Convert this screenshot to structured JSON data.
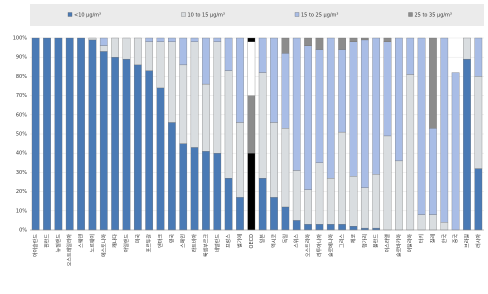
{
  "chart_data": {
    "type": "stacked_bar_100",
    "categories": [
      "아이슬란드",
      "핀란드",
      "뉴질랜드",
      "오스트레일리아",
      "스웨덴",
      "노르웨이",
      "에스토니아",
      "캐나다",
      "아일랜드",
      "미국",
      "포르투갈",
      "덴마크",
      "영국",
      "스페인",
      "라트비아",
      "룩셈부르크",
      "네덜란드",
      "프랑스",
      "벨기에",
      "OECD",
      "일본",
      "멕시코",
      "독일",
      "스위스",
      "오스트리아",
      "리투아니아",
      "슬로베니아",
      "그리스",
      "체코",
      "헝가리",
      "폴란드",
      "이스라엘",
      "슬로바키아",
      "이탈리아",
      "터키",
      "칠레",
      "한국",
      "중국",
      "브라질",
      "러시아"
    ],
    "series": [
      {
        "name": "<10 μg/m³",
        "color": "#4a7ab5",
        "values": [
          100,
          100,
          100,
          100,
          100,
          99,
          93,
          90,
          89,
          86,
          83,
          74,
          56,
          45,
          43,
          41,
          40,
          27,
          17,
          40,
          27,
          17,
          12,
          5,
          3,
          3,
          3,
          3,
          2,
          1,
          1,
          0,
          0,
          0,
          0,
          0,
          0,
          0,
          89,
          32
        ]
      },
      {
        "name": "10 to 15 μg/m³",
        "color": "#d9dde0",
        "values": [
          0,
          0,
          0,
          0,
          0,
          1,
          3,
          10,
          11,
          14,
          15,
          24,
          42,
          41,
          55,
          35,
          58,
          56,
          39,
          30,
          55,
          39,
          41,
          26,
          18,
          32,
          24,
          48,
          26,
          21,
          28,
          49,
          36,
          81,
          8,
          8,
          4,
          0,
          11,
          48
        ]
      },
      {
        "name": "15 to 25 μg/m³",
        "color": "#a9bde6",
        "values": [
          0,
          0,
          0,
          0,
          0,
          0,
          4,
          0,
          0,
          0,
          2,
          2,
          2,
          14,
          2,
          24,
          2,
          17,
          44,
          28,
          18,
          44,
          39,
          69,
          75,
          59,
          73,
          43,
          70,
          77,
          71,
          49,
          64,
          19,
          92,
          45,
          96,
          82,
          0,
          20
        ]
      },
      {
        "name": "25 to 35 μg/m³",
        "color": "#8c8c8c",
        "values": [
          0,
          0,
          0,
          0,
          0,
          0,
          0,
          0,
          0,
          0,
          0,
          0,
          0,
          0,
          0,
          0,
          0,
          0,
          0,
          2,
          0,
          0,
          8,
          0,
          4,
          6,
          0,
          6,
          2,
          1,
          0,
          2,
          0,
          0,
          0,
          47,
          0,
          0,
          0,
          0
        ]
      }
    ],
    "highlight": {
      "category": "OECD",
      "colors": [
        "#000000",
        "#8c8c8c",
        "#ffffff",
        "#000000"
      ]
    },
    "ylim": [
      0,
      100
    ],
    "yticks": [
      {
        "value": 0,
        "label": "0%"
      },
      {
        "value": 10,
        "label": "10%"
      },
      {
        "value": 20,
        "label": "20%"
      },
      {
        "value": 30,
        "label": "30%"
      },
      {
        "value": 40,
        "label": "40%"
      },
      {
        "value": 50,
        "label": "50%"
      },
      {
        "value": 60,
        "label": "60%"
      },
      {
        "value": 70,
        "label": "70%"
      },
      {
        "value": 80,
        "label": "80%"
      },
      {
        "value": 90,
        "label": "90%"
      },
      {
        "value": 100,
        "label": "100%"
      }
    ],
    "grid": true
  }
}
